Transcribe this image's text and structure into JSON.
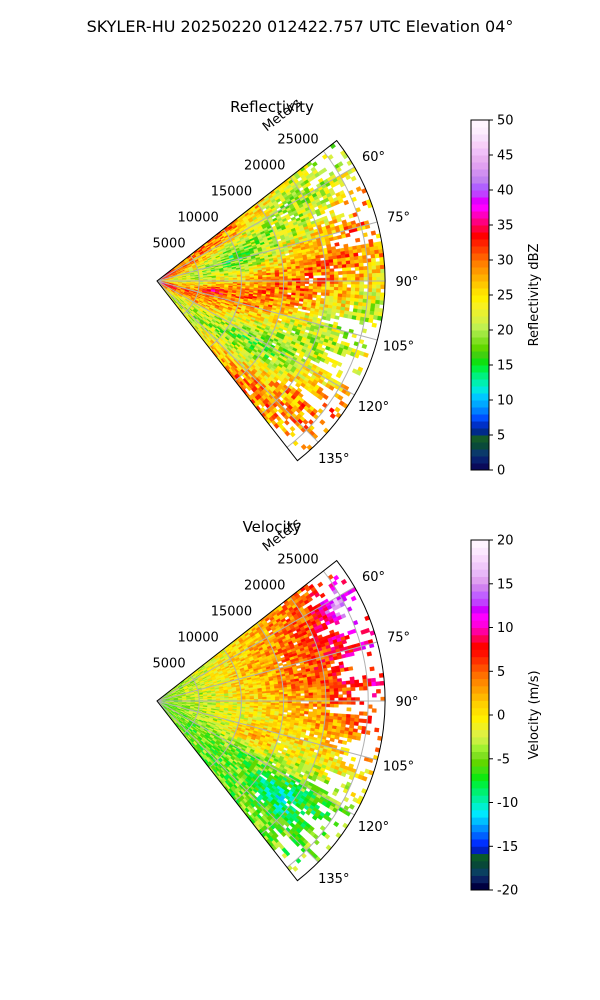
{
  "figure": {
    "suptitle": "SKYLER-HU  20250220  012422.757 UTC Elevation 04°"
  },
  "chart_data": [
    {
      "type": "heatmap",
      "subtype": "polar-sector",
      "title": "Reflectivity",
      "radial_label": "Meters",
      "theta_range_deg": [
        52,
        142
      ],
      "r_max_m": 27000,
      "radial_ticks": [
        "5000",
        "10000",
        "15000",
        "20000",
        "25000"
      ],
      "radial_tick_values": [
        5000,
        10000,
        15000,
        20000,
        25000
      ],
      "angle_ticks": [
        "60°",
        "75°",
        "90°",
        "105°",
        "120°",
        "135°"
      ],
      "angle_tick_values": [
        60,
        75,
        90,
        105,
        120,
        135
      ],
      "grid": true,
      "colorbar": {
        "label": "Reflectivity dBZ",
        "range": [
          0,
          50
        ],
        "ticks": [
          "0",
          "5",
          "10",
          "15",
          "20",
          "25",
          "30",
          "35",
          "40",
          "45",
          "50"
        ],
        "tick_values": [
          0,
          5,
          10,
          15,
          20,
          25,
          30,
          35,
          40,
          45,
          50
        ]
      },
      "dominant_value_range": [
        17,
        33
      ],
      "max_value_approx": 36
    },
    {
      "type": "heatmap",
      "subtype": "polar-sector",
      "title": "Velocity",
      "radial_label": "Meters",
      "theta_range_deg": [
        52,
        142
      ],
      "r_max_m": 27000,
      "radial_ticks": [
        "5000",
        "10000",
        "15000",
        "20000",
        "25000"
      ],
      "radial_tick_values": [
        5000,
        10000,
        15000,
        20000,
        25000
      ],
      "angle_ticks": [
        "60°",
        "75°",
        "90°",
        "105°",
        "120°",
        "135°"
      ],
      "angle_tick_values": [
        60,
        75,
        90,
        105,
        120,
        135
      ],
      "grid": true,
      "colorbar": {
        "label": "Velocity (m/s)",
        "range": [
          -20,
          20
        ],
        "ticks": [
          "-20",
          "-15",
          "-10",
          "-5",
          "0",
          "5",
          "10",
          "15",
          "20"
        ],
        "tick_values": [
          -20,
          -15,
          -10,
          -5,
          0,
          5,
          10,
          15,
          20
        ]
      },
      "dominant_value_range": [
        -7,
        12
      ],
      "max_value_approx": 15,
      "min_value_approx": -9
    }
  ],
  "colormaps": {
    "reflectivity": [
      "#0a0a5a",
      "#08206e",
      "#0a3a6a",
      "#0a4a3a",
      "#145a2a",
      "#002a8a",
      "#0030c8",
      "#0050ff",
      "#0080ff",
      "#00a8ff",
      "#00c8ff",
      "#00e8e0",
      "#00f0b0",
      "#00f080",
      "#00f040",
      "#10e010",
      "#40d010",
      "#60d800",
      "#80e020",
      "#a0e840",
      "#c0f050",
      "#d8f040",
      "#e8f030",
      "#f8f020",
      "#fff000",
      "#ffe000",
      "#ffc800",
      "#ffb000",
      "#ff9800",
      "#ff8000",
      "#ff6000",
      "#ff4000",
      "#ff2000",
      "#ff0000",
      "#ff0040",
      "#ff0080",
      "#ff00c0",
      "#ff00ff",
      "#e000ff",
      "#c040ff",
      "#b060ff",
      "#c080f0",
      "#d090f0",
      "#e0a0f0",
      "#e8b0f0",
      "#f0c0f8",
      "#f8d0f8",
      "#f8e0fc",
      "#fdeefe",
      "#fff5ff"
    ],
    "velocity": [
      "#000040",
      "#0a2060",
      "#0a4060",
      "#084838",
      "#0a5a2a",
      "#0020c0",
      "#0030ff",
      "#0060ff",
      "#0090ff",
      "#00c0ff",
      "#00e8ff",
      "#00f0d0",
      "#00f0a0",
      "#00f070",
      "#00f040",
      "#10e810",
      "#40e010",
      "#60d800",
      "#80e020",
      "#a0f030",
      "#c8f040",
      "#e0f040",
      "#f0f020",
      "#fff000",
      "#ffe000",
      "#ffd000",
      "#ffb800",
      "#ffa000",
      "#ff8800",
      "#ff7000",
      "#ff5000",
      "#ff3000",
      "#ff1000",
      "#ff0000",
      "#ff0050",
      "#ff00a0",
      "#ff00e0",
      "#ff00ff",
      "#d000ff",
      "#c040ff",
      "#c060ff",
      "#d080f0",
      "#e0a0f0",
      "#e8b8f8",
      "#f0c8fa",
      "#f8d8fc",
      "#fce8fe",
      "#fff4ff"
    ]
  }
}
